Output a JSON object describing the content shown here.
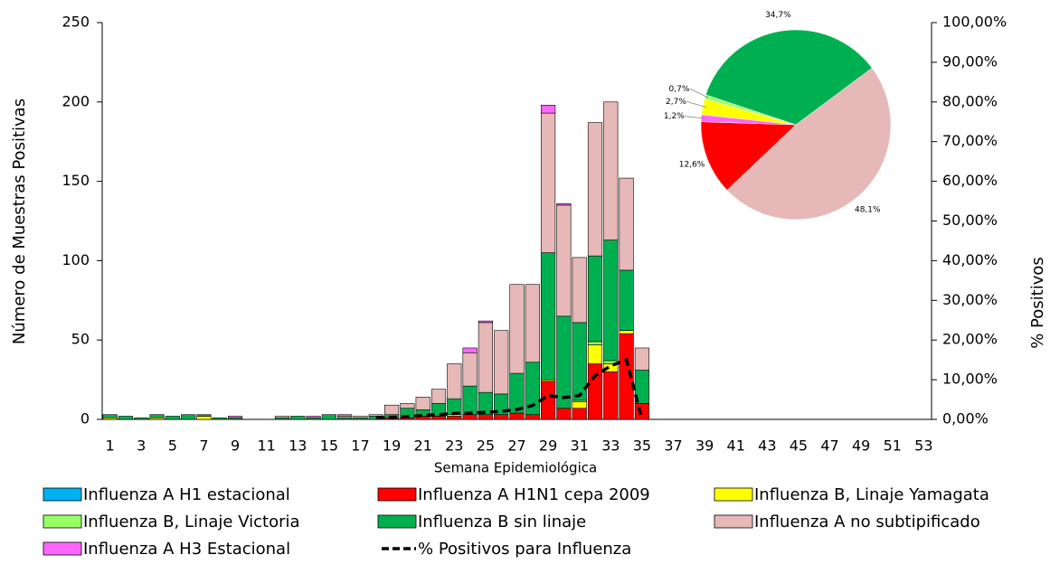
{
  "chart_data": [
    {
      "type": "bar",
      "stacked": true,
      "xlabel": "Semana Epidemiológica",
      "ylabel": "Número de Muestras Positivas",
      "y2label": "% Positivos",
      "categories": [
        1,
        null,
        3,
        null,
        5,
        null,
        7,
        null,
        9,
        null,
        11,
        null,
        13,
        null,
        15,
        null,
        17,
        null,
        19,
        null,
        21,
        null,
        23,
        null,
        25,
        null,
        27,
        null,
        29,
        null,
        31,
        null,
        33,
        null,
        35,
        null,
        37,
        null,
        39,
        null,
        41,
        null,
        43,
        null,
        45,
        null,
        47,
        null,
        49,
        null,
        51,
        null,
        53
      ],
      "ylim": [
        0,
        250
      ],
      "yticks": [
        0,
        50,
        100,
        150,
        200,
        250
      ],
      "y2lim": [
        0,
        100
      ],
      "y2ticks": [
        {
          "value": 0,
          "label": "0,00%"
        },
        {
          "value": 10,
          "label": "10,00%"
        },
        {
          "value": 20,
          "label": "20,00%"
        },
        {
          "value": 30,
          "label": "30,00%"
        },
        {
          "value": 40,
          "label": "40,00%"
        },
        {
          "value": 50,
          "label": "50,00%"
        },
        {
          "value": 60,
          "label": "60,00%"
        },
        {
          "value": 70,
          "label": "70,00%"
        },
        {
          "value": 80,
          "label": "80,00%"
        },
        {
          "value": 90,
          "label": "90,00%"
        },
        {
          "value": 100,
          "label": "100,00%"
        }
      ],
      "series": [
        {
          "name": "Influenza A H1 estacional",
          "color": "#00b0f0",
          "values": [
            0,
            0,
            0,
            0,
            0,
            0,
            0,
            0,
            0,
            0,
            0,
            0,
            0,
            0,
            0,
            0,
            0,
            0,
            0,
            0,
            0,
            0,
            0,
            0,
            0,
            0,
            0,
            0,
            0,
            0,
            0,
            0,
            0,
            0,
            0,
            0,
            0,
            0,
            0,
            0,
            0,
            0,
            0,
            0,
            0,
            0,
            0,
            0,
            0,
            0,
            0,
            0,
            0
          ]
        },
        {
          "name": "Influenza A H1N1 cepa 2009",
          "color": "#ff0000",
          "values": [
            0,
            0,
            0,
            0,
            0,
            0,
            0,
            0,
            0,
            0,
            0,
            0,
            0,
            0,
            0,
            0,
            0,
            0,
            1,
            1,
            2,
            2,
            2,
            3,
            3,
            3,
            4,
            3,
            24,
            7,
            7,
            35,
            30,
            54,
            10,
            0,
            0,
            0,
            0,
            0,
            0,
            0,
            0,
            0,
            0,
            0,
            0,
            0,
            0,
            0,
            0,
            0,
            0
          ]
        },
        {
          "name": "Influenza B, Linaje Yamagata",
          "color": "#ffff00",
          "values": [
            1,
            0,
            0,
            1,
            0,
            0,
            2,
            0,
            0,
            0,
            0,
            0,
            0,
            0,
            0,
            0,
            0,
            0,
            0,
            0,
            0,
            0,
            1,
            0,
            0,
            0,
            0,
            0,
            1,
            0,
            4,
            12,
            5,
            2,
            0,
            0,
            0,
            0,
            0,
            0,
            0,
            0,
            0,
            0,
            0,
            0,
            0,
            0,
            0,
            0,
            0,
            0,
            0
          ]
        },
        {
          "name": "Influenza B, Linaje Victoria",
          "color": "#99ff66",
          "values": [
            0,
            0,
            0,
            0,
            0,
            0,
            0,
            0,
            0,
            0,
            0,
            0,
            0,
            0,
            0,
            0,
            0,
            0,
            0,
            0,
            0,
            0,
            0,
            0,
            0,
            0,
            0,
            0,
            0,
            0,
            1,
            2,
            2,
            0,
            0,
            0,
            0,
            0,
            0,
            0,
            0,
            0,
            0,
            0,
            0,
            0,
            0,
            0,
            0,
            0,
            0,
            0,
            0
          ]
        },
        {
          "name": "Influenza B sin linaje",
          "color": "#00b050",
          "values": [
            2,
            2,
            1,
            2,
            2,
            3,
            1,
            1,
            1,
            0,
            0,
            1,
            2,
            1,
            3,
            1,
            1,
            2,
            2,
            6,
            4,
            8,
            10,
            18,
            14,
            13,
            25,
            33,
            80,
            58,
            49,
            54,
            76,
            38,
            21,
            0,
            0,
            0,
            0,
            0,
            0,
            0,
            0,
            0,
            0,
            0,
            0,
            0,
            0,
            0,
            0,
            0,
            0
          ]
        },
        {
          "name": "Influenza A no subtipificado",
          "color": "#e6b8b7",
          "values": [
            0,
            0,
            0,
            0,
            0,
            0,
            0,
            0,
            0,
            0,
            0,
            1,
            0,
            0,
            0,
            1,
            1,
            1,
            6,
            3,
            8,
            9,
            22,
            21,
            44,
            40,
            56,
            49,
            88,
            70,
            41,
            84,
            87,
            58,
            14,
            0,
            0,
            0,
            0,
            0,
            0,
            0,
            0,
            0,
            0,
            0,
            0,
            0,
            0,
            0,
            0,
            0,
            0
          ]
        },
        {
          "name": "Influenza A H3 Estacional",
          "color": "#ff66ff",
          "values": [
            0,
            0,
            0,
            0,
            0,
            0,
            0,
            0,
            1,
            0,
            0,
            0,
            0,
            1,
            0,
            1,
            0,
            0,
            0,
            0,
            0,
            0,
            0,
            3,
            1,
            0,
            0,
            0,
            5,
            1,
            0,
            0,
            0,
            0,
            0,
            0,
            0,
            0,
            0,
            0,
            0,
            0,
            0,
            0,
            0,
            0,
            0,
            0,
            0,
            0,
            0,
            0,
            0
          ]
        },
        {
          "name": "% Positivos para Influenza",
          "type": "line",
          "axis": "y2",
          "color": "#000000",
          "dashed": true,
          "values": [
            null,
            null,
            null,
            null,
            null,
            null,
            null,
            null,
            null,
            null,
            null,
            null,
            null,
            null,
            null,
            null,
            null,
            0.5,
            0.5,
            0.7,
            1,
            1.2,
            1.5,
            1.6,
            1.8,
            2,
            2.5,
            3.5,
            6,
            5.5,
            6,
            11,
            13.5,
            15,
            0,
            null,
            null,
            null,
            null,
            null,
            null,
            null,
            null,
            null,
            null,
            null,
            null,
            null,
            null,
            null,
            null,
            null,
            null
          ]
        }
      ]
    },
    {
      "type": "pie",
      "values": [
        48.1,
        12.6,
        1.2,
        2.7,
        0.7,
        34.7
      ],
      "value_labels": [
        "48,1%",
        "12,6%",
        "1,2%",
        "2,7%",
        "0,7%",
        "34,7%"
      ],
      "colors": [
        "#e6b8b7",
        "#ff0000",
        "#ff66ff",
        "#ffff00",
        "#99ff66",
        "#00b050"
      ]
    }
  ]
}
